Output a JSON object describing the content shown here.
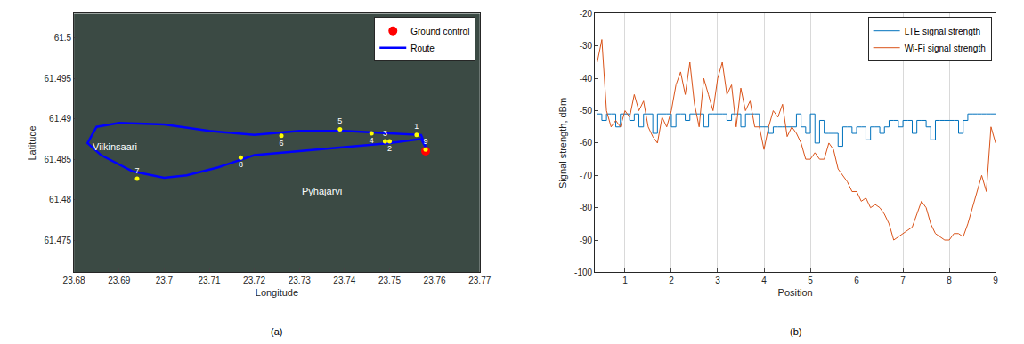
{
  "chart_data": [
    {
      "type": "scatter",
      "caption": "(a)",
      "x_label": "Longitude",
      "y_label": "Latitude",
      "xlim": [
        23.68,
        23.77
      ],
      "xticks": [
        23.68,
        23.69,
        23.7,
        23.71,
        23.72,
        23.73,
        23.74,
        23.75,
        23.76,
        23.77
      ],
      "ylim": [
        61.471,
        61.503
      ],
      "yticks": [
        61.475,
        61.48,
        61.485,
        61.49,
        61.495,
        61.5
      ],
      "grid": false,
      "legend": "upper right",
      "series": [
        {
          "name": "Ground control",
          "type": "scatter",
          "marker": "circle",
          "color": "#ff0000",
          "x": [
            23.758
          ],
          "values": [
            61.486
          ]
        },
        {
          "name": "Route",
          "type": "line",
          "color": "#0000ff",
          "x": [
            23.758,
            23.757,
            23.75,
            23.74,
            23.73,
            23.72,
            23.71,
            23.7,
            23.69,
            23.685,
            23.683,
            23.686,
            23.693,
            23.7,
            23.705,
            23.712,
            23.72,
            23.73,
            23.74,
            23.75,
            23.757,
            23.758
          ],
          "values": [
            61.4865,
            61.488,
            61.4882,
            61.4885,
            61.4885,
            61.488,
            61.4885,
            61.4893,
            61.4895,
            61.489,
            61.487,
            61.4855,
            61.4835,
            61.4827,
            61.483,
            61.484,
            61.4855,
            61.486,
            61.4865,
            61.487,
            61.4875,
            61.4865
          ]
        }
      ],
      "points": {
        "color": "#ffff00",
        "labels": [
          "1",
          "2",
          "3",
          "4",
          "5",
          "6",
          "7",
          "8",
          "9"
        ],
        "x": [
          23.756,
          23.75,
          23.749,
          23.746,
          23.739,
          23.726,
          23.694,
          23.717,
          23.758
        ],
        "values": [
          61.488,
          61.4872,
          61.4872,
          61.4882,
          61.4887,
          61.4879,
          61.4826,
          61.4852,
          61.4862
        ]
      },
      "annotations": [
        {
          "text": "Viikinsaari",
          "x": 23.689,
          "y": 61.4865
        },
        {
          "text": "Pyhajarvi",
          "x": 23.735,
          "y": 61.481
        }
      ]
    },
    {
      "type": "line",
      "caption": "(b)",
      "x_label": "Position",
      "y_label": "Signal strength, dBm",
      "xlim": [
        0.35,
        9
      ],
      "xticks": [
        1,
        2,
        3,
        4,
        5,
        6,
        7,
        8,
        9
      ],
      "ylim": [
        -100,
        -20
      ],
      "yticks": [
        -100,
        -90,
        -80,
        -70,
        -60,
        -50,
        -40,
        -30,
        -20
      ],
      "grid": "x",
      "legend": "upper right",
      "x": [
        0.4,
        0.5,
        0.6,
        0.7,
        0.8,
        0.9,
        1.0,
        1.1,
        1.2,
        1.3,
        1.4,
        1.5,
        1.6,
        1.7,
        1.8,
        1.9,
        2.0,
        2.1,
        2.2,
        2.3,
        2.4,
        2.5,
        2.6,
        2.7,
        2.8,
        2.9,
        3.0,
        3.1,
        3.2,
        3.3,
        3.4,
        3.5,
        3.6,
        3.7,
        3.8,
        3.9,
        4.0,
        4.1,
        4.2,
        4.3,
        4.4,
        4.5,
        4.6,
        4.7,
        4.8,
        4.9,
        5.0,
        5.1,
        5.2,
        5.3,
        5.4,
        5.5,
        5.6,
        5.7,
        5.8,
        5.9,
        6.0,
        6.1,
        6.2,
        6.3,
        6.4,
        6.5,
        6.6,
        6.7,
        6.8,
        6.9,
        7.0,
        7.1,
        7.2,
        7.3,
        7.4,
        7.5,
        7.6,
        7.7,
        7.8,
        7.9,
        8.0,
        8.1,
        8.2,
        8.3,
        8.4,
        8.5,
        8.6,
        8.7,
        8.8,
        8.9,
        9.0
      ],
      "series": [
        {
          "name": "LTE signal strength",
          "color": "#0072bd",
          "line_style": "step",
          "values": [
            -51,
            -53,
            -51,
            -51,
            -55,
            -51,
            -51,
            -53,
            -51,
            -55,
            -51,
            -51,
            -57,
            -51,
            -51,
            -51,
            -55,
            -51,
            -51,
            -53,
            -51,
            -51,
            -51,
            -55,
            -51,
            -51,
            -51,
            -51,
            -53,
            -51,
            -51,
            -55,
            -51,
            -51,
            -51,
            -55,
            -55,
            -57,
            -55,
            -55,
            -55,
            -55,
            -55,
            -51,
            -55,
            -57,
            -51,
            -60,
            -53,
            -57,
            -57,
            -57,
            -61,
            -55,
            -55,
            -57,
            -55,
            -55,
            -59,
            -55,
            -55,
            -57,
            -55,
            -53,
            -53,
            -55,
            -53,
            -53,
            -57,
            -53,
            -53,
            -55,
            -59,
            -53,
            -53,
            -53,
            -53,
            -53,
            -57,
            -53,
            -51,
            -51,
            -51,
            -51,
            -51,
            -51,
            -51
          ]
        },
        {
          "name": "Wi-Fi signal strength",
          "color": "#d95319",
          "line_style": "solid",
          "values": [
            -35,
            -28,
            -50,
            -55,
            -53,
            -55,
            -50,
            -52,
            -45,
            -50,
            -47,
            -55,
            -58,
            -60,
            -52,
            -55,
            -50,
            -42,
            -38,
            -45,
            -35,
            -48,
            -55,
            -40,
            -45,
            -50,
            -40,
            -35,
            -45,
            -42,
            -55,
            -43,
            -50,
            -47,
            -55,
            -55,
            -62,
            -55,
            -50,
            -52,
            -48,
            -58,
            -55,
            -57,
            -60,
            -65,
            -65,
            -63,
            -65,
            -65,
            -60,
            -62,
            -68,
            -70,
            -72,
            -75,
            -75,
            -78,
            -77,
            -80,
            -79,
            -80,
            -82,
            -85,
            -90,
            -89,
            -88,
            -87,
            -86,
            -82,
            -78,
            -80,
            -85,
            -88,
            -89,
            -90,
            -90,
            -88,
            -88,
            -89,
            -85,
            -80,
            -75,
            -70,
            -75,
            -55,
            -60
          ]
        }
      ]
    }
  ]
}
